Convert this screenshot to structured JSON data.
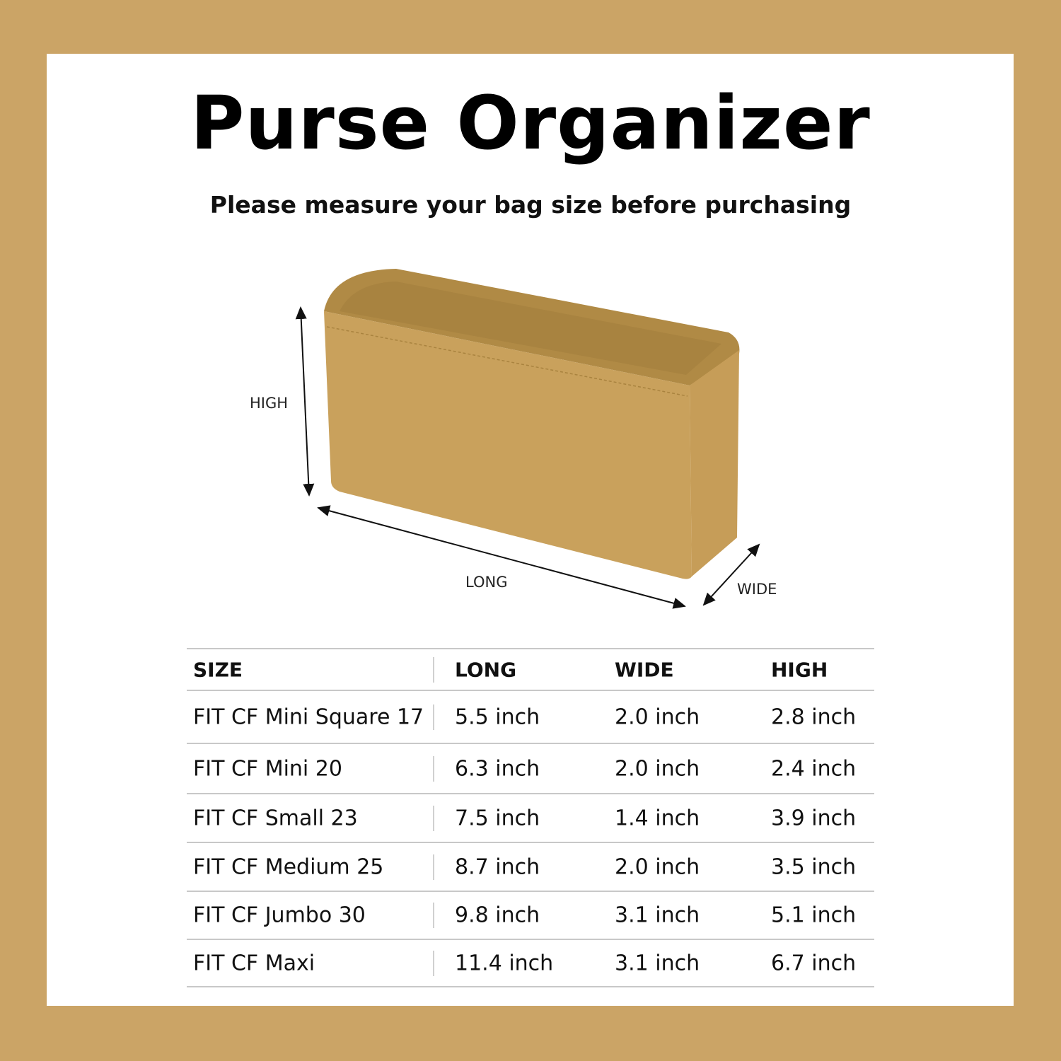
{
  "title": "Purse Organizer",
  "subtitle": "Please measure your bag size before purchasing",
  "colors": {
    "border": "#cba466",
    "panel": "#ffffff",
    "product": "#c9a15c"
  },
  "diagram": {
    "high_label": "HIGH",
    "long_label": "LONG",
    "wide_label": "WIDE"
  },
  "table": {
    "headers": [
      "SIZE",
      "LONG",
      "WIDE",
      "HIGH"
    ],
    "rows": [
      [
        "FIT CF Mini Square 17",
        "5.5 inch",
        "2.0 inch",
        "2.8 inch"
      ],
      [
        "FIT CF Mini 20",
        "6.3 inch",
        "2.0 inch",
        "2.4 inch"
      ],
      [
        "FIT CF Small 23",
        "7.5 inch",
        "1.4 inch",
        "3.9 inch"
      ],
      [
        "FIT CF Medium 25",
        "8.7 inch",
        "2.0 inch",
        "3.5 inch"
      ],
      [
        "FIT CF Jumbo 30",
        "9.8 inch",
        "3.1 inch",
        "5.1 inch"
      ],
      [
        "FIT CF Maxi",
        "11.4 inch",
        "3.1 inch",
        "6.7 inch"
      ]
    ]
  }
}
